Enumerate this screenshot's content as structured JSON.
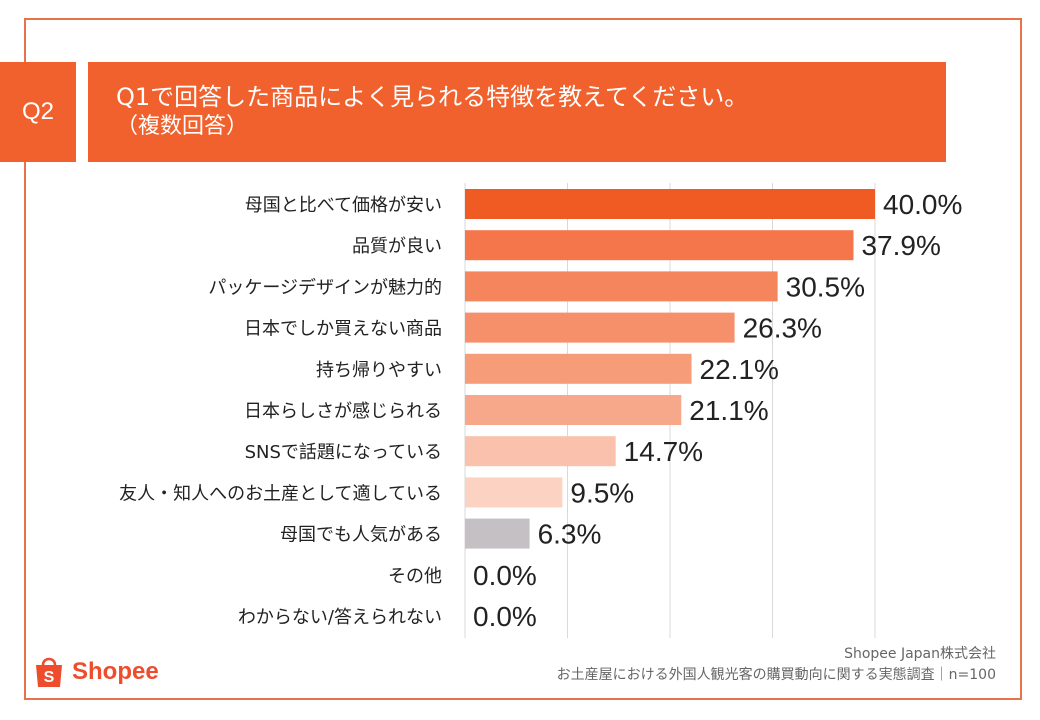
{
  "header": {
    "badge": "Q2",
    "title": "Q1で回答した商品によく見られる特徴を教えてください。",
    "subtitle": "（複数回答）"
  },
  "colors": {
    "accent": "#f0612e",
    "bar_shades": [
      "#f05a23",
      "#f4764a",
      "#f5855c",
      "#f6906a",
      "#f79c78",
      "#f8a88a",
      "#fac2ac",
      "#fcd2c2",
      "#c4c0c4",
      "#f6906a",
      "#f6906a"
    ]
  },
  "chart_data": {
    "type": "bar",
    "orientation": "horizontal",
    "categories": [
      "母国と比べて価格が安い",
      "品質が良い",
      "パッケージデザインが魅力的",
      "日本でしか買えない商品",
      "持ち帰りやすい",
      "日本らしさが感じられる",
      "SNSで話題になっている",
      "友人・知人へのお土産として適している",
      "母国でも人気がある",
      "その他",
      "わからない/答えられない"
    ],
    "values": [
      40.0,
      37.9,
      30.5,
      26.3,
      22.1,
      21.1,
      14.7,
      9.5,
      6.3,
      0.0,
      0.0
    ],
    "labels": [
      "40.0%",
      "37.9%",
      "30.5%",
      "26.3%",
      "22.1%",
      "21.1%",
      "14.7%",
      "9.5%",
      "6.3%",
      "0.0%",
      "0.0%"
    ],
    "xlim": [
      0,
      40
    ],
    "grid": true,
    "unit": "%"
  },
  "footer": {
    "logo_text": "Shopee",
    "source_line1": "Shopee Japan株式会社",
    "source_line2": "お土産屋における外国人観光客の購買動向に関する実態調査｜n=100"
  }
}
